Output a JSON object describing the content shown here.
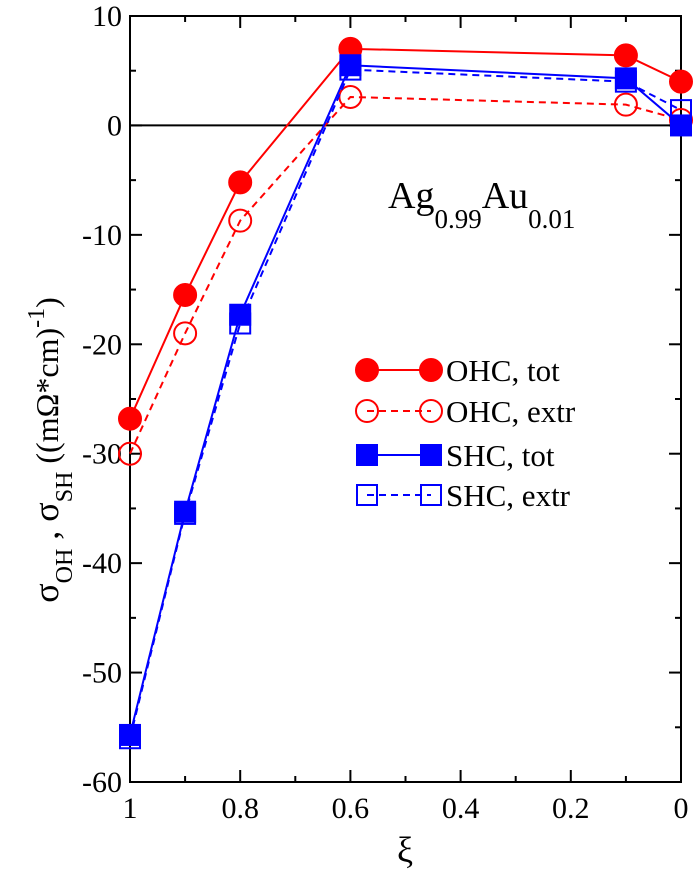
{
  "chart_data": {
    "type": "line",
    "title": "",
    "annotation": {
      "base": "Ag",
      "sub1": "0.99",
      "mid": "Au",
      "sub2": "0.01"
    },
    "xlabel": "ξ",
    "ylabel": {
      "sigma1": "σ",
      "sub1": "OH",
      "sep": " , ",
      "sigma2": "σ",
      "sub2": "SH",
      "units": "  ((mΩ*cm)",
      "sup": "-1",
      "close": ")"
    },
    "xlim": [
      1,
      0
    ],
    "ylim": [
      -60,
      10
    ],
    "x_reversed": true,
    "zero_line": true,
    "x_ticks": [
      1,
      0.8,
      0.6,
      0.4,
      0.2,
      0
    ],
    "x_tick_labels": [
      "1",
      "0.8",
      "0.6",
      "0.4",
      "0.2",
      "0"
    ],
    "y_ticks": [
      -60,
      -50,
      -40,
      -30,
      -20,
      -10,
      0,
      10
    ],
    "y_tick_labels": [
      "-60",
      "-50",
      "-40",
      "-30",
      "-20",
      "-10",
      "0",
      "10"
    ],
    "legend_position": "right",
    "series": [
      {
        "name": "OHC, tot",
        "color": "#ff0000",
        "marker": "circle",
        "filled": true,
        "dashed": false,
        "x": [
          1,
          0.9,
          0.8,
          0.6,
          0.1,
          0.0
        ],
        "y": [
          -26.8,
          -15.5,
          -5.2,
          7.0,
          6.4,
          4.0
        ]
      },
      {
        "name": "OHC, extr",
        "color": "#ff0000",
        "marker": "circle",
        "filled": false,
        "dashed": true,
        "x": [
          1,
          0.9,
          0.8,
          0.6,
          0.1,
          0.0
        ],
        "y": [
          -30.0,
          -19.0,
          -8.7,
          2.6,
          1.9,
          0.5
        ]
      },
      {
        "name": "SHC, tot",
        "color": "#0000ff",
        "marker": "square",
        "filled": true,
        "dashed": false,
        "x": [
          1,
          0.9,
          0.8,
          0.6,
          0.1,
          0.0
        ],
        "y": [
          -55.7,
          -35.3,
          -17.3,
          5.5,
          4.3,
          0.0
        ]
      },
      {
        "name": "SHC, extr",
        "color": "#0000ff",
        "marker": "square",
        "filled": false,
        "dashed": true,
        "x": [
          1,
          0.9,
          0.8,
          0.6,
          0.1,
          0.0
        ],
        "y": [
          -56.0,
          -35.5,
          -18.1,
          5.1,
          4.0,
          1.4
        ]
      }
    ]
  }
}
